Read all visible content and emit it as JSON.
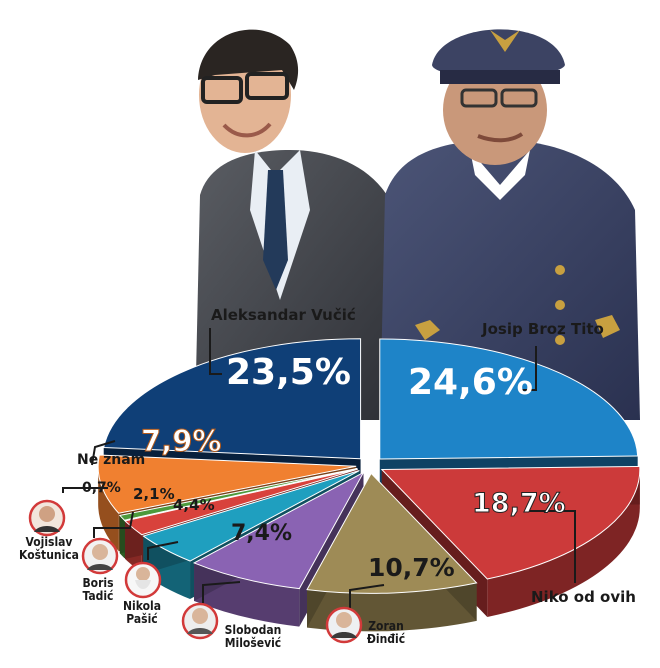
{
  "chart_data": {
    "type": "pie",
    "slices": [
      {
        "label": "Josip Broz Tito",
        "value_label": "24,6%",
        "value": 24.6,
        "color": "#1e84c8"
      },
      {
        "label": "Niko od ovih",
        "value_label": "18,7%",
        "value": 18.7,
        "color": "#cc3a3a"
      },
      {
        "label": "Zoran Đinđić",
        "value_label": "10,7%",
        "value": 10.7,
        "color": "#9e8b56"
      },
      {
        "label": "Slobodan Milošević",
        "value_label": "7,4%",
        "value": 7.4,
        "color": "#8a63b3"
      },
      {
        "label": "Nikola Pašić",
        "value_label": "4,4%",
        "value": 4.4,
        "color": "#1f9fbf"
      },
      {
        "label": "Boris Tadić",
        "value_label": "2,1%",
        "value": 2.1,
        "color": "#d8423c"
      },
      {
        "label": "Vojislav Koštunica",
        "value_label": "0,7%",
        "value": 0.7,
        "color": "#4c9a3c"
      },
      {
        "label": "Ne znam",
        "value_label": "7,9%",
        "value": 7.9,
        "color": "#f08030"
      },
      {
        "label": "Aleksandar Vučić",
        "value_label": "23,5%",
        "value": 23.5,
        "color": "#0f3f77"
      }
    ]
  },
  "labels": {
    "vucic": "Aleksandar Vučić",
    "tito": "Josip Broz Tito",
    "niko": "Niko od ovih",
    "ne_znam": "Ne znam",
    "kostunica_1": "Vojislav",
    "kostunica_2": "Koštunica",
    "tadic_1": "Boris",
    "tadic_2": "Tadić",
    "pasic_1": "Nikola",
    "pasic_2": "Pašić",
    "milosevic_1": "Slobodan",
    "milosevic_2": "Milošević",
    "djindjic_1": "Zoran",
    "djindjic_2": "Đinđić"
  }
}
